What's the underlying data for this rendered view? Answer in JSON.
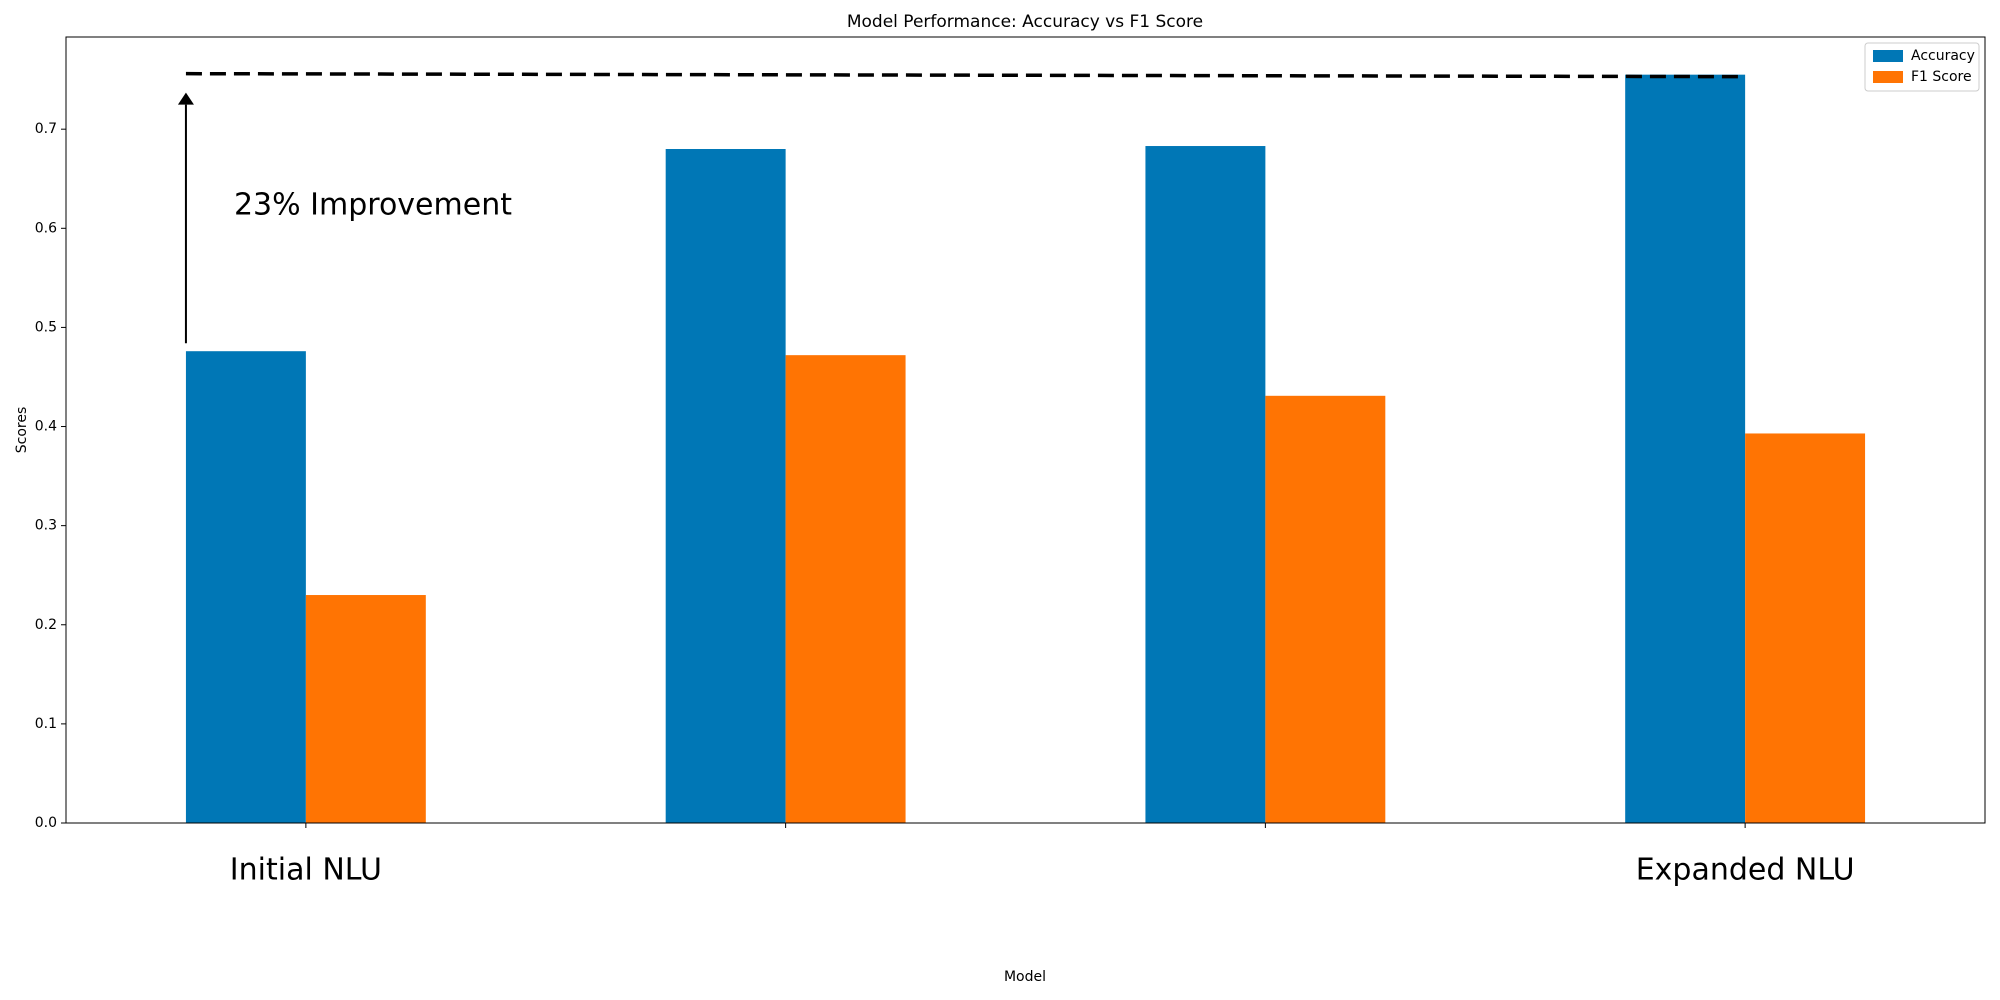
{
  "chart_data": {
    "type": "bar",
    "title": "Model Performance: Accuracy vs F1 Score",
    "x_label": "Model",
    "y_label": "Scores",
    "categories": [
      "Initial NLU",
      null,
      null,
      "Expanded NLU"
    ],
    "series": [
      {
        "name": "Accuracy",
        "color": "#0077b6",
        "values": [
          0.476,
          0.68,
          0.683,
          0.755
        ]
      },
      {
        "name": "F1 Score",
        "color": "#ff7403",
        "values": [
          0.23,
          0.472,
          0.431,
          0.393
        ]
      }
    ],
    "ylim": [
      0,
      0.793
    ],
    "yticks": [
      {
        "value": 0,
        "label": "0.0"
      },
      0.1,
      0.2,
      0.3,
      0.4,
      0.5,
      0.6,
      0.7
    ],
    "annotation": "23% Improvement",
    "legend": "upper right"
  }
}
